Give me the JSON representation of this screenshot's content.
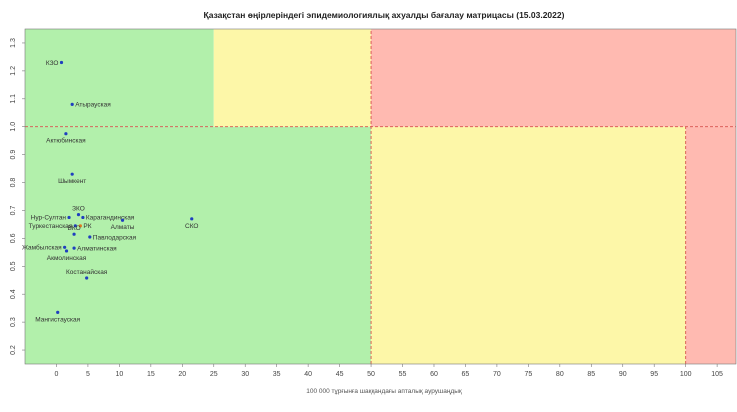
{
  "chart_data": {
    "type": "scatter",
    "title": "Қазақстан өңірлеріндегі эпидемиологиялық ахуалды бағалау матрицасы  (15.03.2022)",
    "xlabel": "100 000 тұрғынға шаққандағы апталық аурушаңдық",
    "ylabel": "",
    "xlim": [
      -5,
      108
    ],
    "ylim": [
      0.15,
      1.35
    ],
    "xticks": [
      0,
      5,
      10,
      15,
      20,
      25,
      30,
      35,
      40,
      45,
      50,
      55,
      60,
      65,
      70,
      75,
      80,
      85,
      90,
      95,
      100,
      105
    ],
    "yticks": [
      0.2,
      0.3,
      0.4,
      0.5,
      0.6,
      0.7,
      0.8,
      0.9,
      1.0,
      1.1,
      1.2,
      1.3
    ],
    "ytick_labels": [
      "0.2",
      "0.3",
      "0.4",
      "0.5",
      "0.6",
      "0.7",
      "0.8",
      "0.9",
      "1.0",
      "1.1",
      "1.2",
      "1.3"
    ],
    "grid": false,
    "zones": [
      {
        "x": [
          -5,
          25
        ],
        "y": [
          1.0,
          1.35
        ],
        "color": "#b2f0ab"
      },
      {
        "x": [
          25,
          50
        ],
        "y": [
          1.0,
          1.35
        ],
        "color": "#fdf7a8"
      },
      {
        "x": [
          50,
          108
        ],
        "y": [
          1.0,
          1.35
        ],
        "color": "#ffbab1"
      },
      {
        "x": [
          -5,
          50
        ],
        "y": [
          0.15,
          1.0
        ],
        "color": "#b2f0ab"
      },
      {
        "x": [
          50,
          100
        ],
        "y": [
          0.15,
          1.0
        ],
        "color": "#fdf7a8"
      },
      {
        "x": [
          100,
          108
        ],
        "y": [
          0.15,
          1.0
        ],
        "color": "#ffbab1"
      }
    ],
    "threshold_lines": [
      {
        "x": [
          -5,
          108
        ],
        "y": [
          1.0,
          1.0
        ]
      },
      {
        "x": [
          50,
          50
        ],
        "y": [
          0.15,
          1.35
        ]
      },
      {
        "x": [
          100,
          100
        ],
        "y": [
          0.15,
          1.0
        ]
      }
    ],
    "threshold_color": "#d9534f",
    "point_color": "#1f3fbf",
    "rk_color": "#e07a1f",
    "points": [
      {
        "label": "КЗО",
        "x": 0.8,
        "y": 1.23,
        "label_pos": "left"
      },
      {
        "label": "Атырауская",
        "x": 2.5,
        "y": 1.08,
        "label_pos": "right"
      },
      {
        "label": "Актюбинская",
        "x": 1.5,
        "y": 0.975,
        "label_pos": "below"
      },
      {
        "label": "Шымкент",
        "x": 2.5,
        "y": 0.83,
        "label_pos": "below"
      },
      {
        "label": "ЗКО",
        "x": 3.5,
        "y": 0.685,
        "label_pos": "above"
      },
      {
        "label": "Нур-Султан",
        "x": 2.0,
        "y": 0.675,
        "label_pos": "left"
      },
      {
        "label": "Карагандинская",
        "x": 4.2,
        "y": 0.675,
        "label_pos": "right"
      },
      {
        "label": "Туркестанская",
        "x": 3.0,
        "y": 0.645,
        "label_pos": "left"
      },
      {
        "label": "РК",
        "x": 3.8,
        "y": 0.645,
        "label_pos": "right",
        "rk": true
      },
      {
        "label": "Алматы",
        "x": 10.5,
        "y": 0.665,
        "label_pos": "below"
      },
      {
        "label": "СКО",
        "x": 21.5,
        "y": 0.67,
        "label_pos": "below"
      },
      {
        "label": "ВКО",
        "x": 2.8,
        "y": 0.615,
        "label_pos": "above"
      },
      {
        "label": "Павлодарская",
        "x": 5.3,
        "y": 0.605,
        "label_pos": "right"
      },
      {
        "label": "Жамбылская",
        "x": 1.3,
        "y": 0.568,
        "label_pos": "left"
      },
      {
        "label": "Алматинская",
        "x": 2.8,
        "y": 0.565,
        "label_pos": "right"
      },
      {
        "label": "Акмолинская",
        "x": 1.6,
        "y": 0.555,
        "label_pos": "below"
      },
      {
        "label": "Костанайская",
        "x": 4.8,
        "y": 0.458,
        "label_pos": "above"
      },
      {
        "label": "Мангистауская",
        "x": 0.2,
        "y": 0.335,
        "label_pos": "below"
      }
    ]
  }
}
